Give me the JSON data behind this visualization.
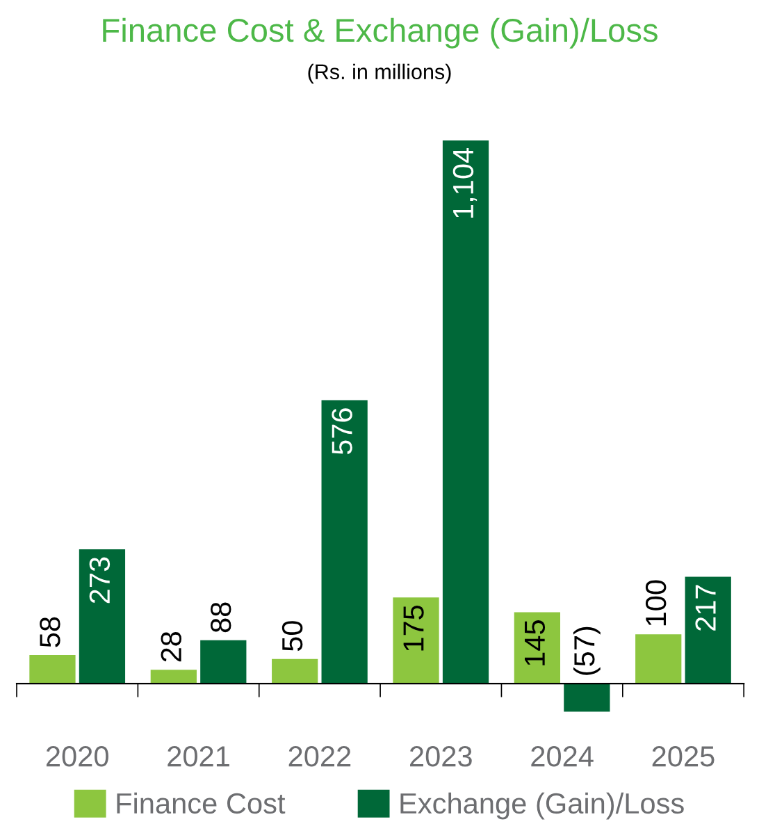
{
  "chart_data": {
    "type": "bar",
    "title": "Finance Cost & Exchange (Gain)/Loss",
    "subtitle": "(Rs. in millions)",
    "categories": [
      "2020",
      "2021",
      "2022",
      "2023",
      "2024",
      "2025"
    ],
    "series": [
      {
        "name": "Finance Cost",
        "color": "#8dc63f",
        "values": [
          58,
          28,
          50,
          175,
          145,
          100
        ],
        "value_labels": [
          "58",
          "28",
          "50",
          "175",
          "145",
          "100"
        ]
      },
      {
        "name": "Exchange (Gain)/Loss",
        "color": "#006838",
        "values": [
          273,
          88,
          576,
          1104,
          -57,
          217
        ],
        "value_labels": [
          "273",
          "88",
          "576",
          "1,104",
          "(57)",
          "217"
        ]
      }
    ],
    "legend": "bottom",
    "grid": false
  }
}
